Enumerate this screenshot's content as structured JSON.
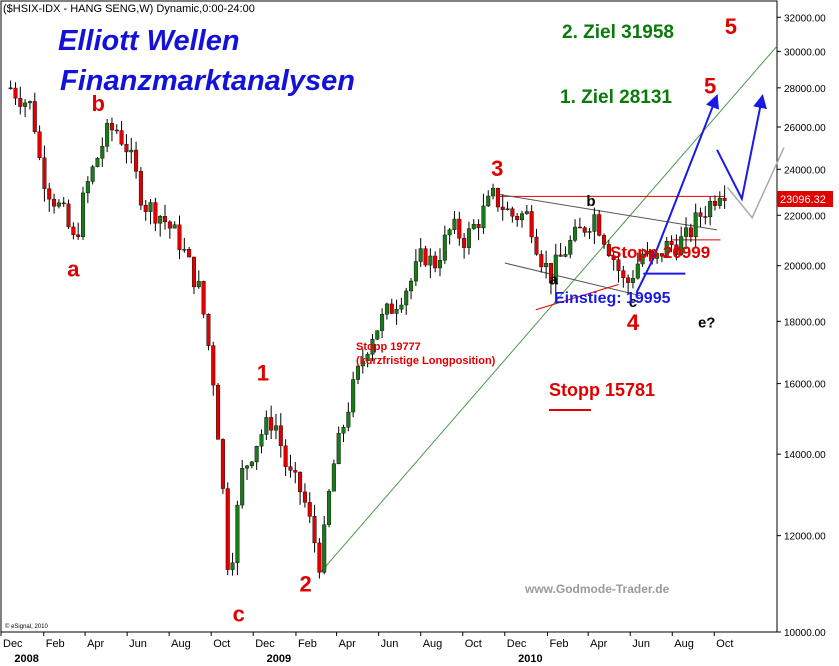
{
  "header": {
    "text": "($HSIX-IDX - HANG SENG,W) Dynamic,0:00-24:00"
  },
  "title": {
    "line1": "Elliott Wellen",
    "line2": "Finanzmarktanalysen"
  },
  "watermark": "www.Godmode-Trader.de",
  "copyright": "© eSignal, 2010",
  "colors": {
    "red": "#e00000",
    "blue": "#1a1ae6",
    "green": "#0a7a0a",
    "trend": "#4a9a4a",
    "candle": "#1a7a1a"
  },
  "chart_data": {
    "type": "candlestick",
    "title": "($HSIX-IDX - HANG SENG,W) Dynamic,0:00-24:00",
    "y_axis": {
      "side": "right",
      "scale": "log",
      "range": [
        10000,
        33000
      ],
      "ticks": [
        "10000.00",
        "12000.00",
        "14000.00",
        "16000.00",
        "18000.00",
        "20000.00",
        "22000.00",
        "24000.00",
        "26000.00",
        "28000.00",
        "30000.00",
        "32000.00"
      ]
    },
    "x_axis": {
      "range": [
        "2007-12-01",
        "2010-12-31"
      ],
      "months": [
        {
          "label": "Dec",
          "date": "2007-12-01"
        },
        {
          "label": "Feb",
          "date": "2008-02-01"
        },
        {
          "label": "Apr",
          "date": "2008-04-01"
        },
        {
          "label": "Jun",
          "date": "2008-06-01"
        },
        {
          "label": "Aug",
          "date": "2008-08-01"
        },
        {
          "label": "Oct",
          "date": "2008-10-01"
        },
        {
          "label": "Dec",
          "date": "2008-12-01"
        },
        {
          "label": "Feb",
          "date": "2009-02-01"
        },
        {
          "label": "Apr",
          "date": "2009-04-01"
        },
        {
          "label": "Jun",
          "date": "2009-06-01"
        },
        {
          "label": "Aug",
          "date": "2009-08-01"
        },
        {
          "label": "Oct",
          "date": "2009-10-01"
        },
        {
          "label": "Dec",
          "date": "2009-12-01"
        },
        {
          "label": "Feb",
          "date": "2010-02-01"
        },
        {
          "label": "Apr",
          "date": "2010-04-01"
        },
        {
          "label": "Jun",
          "date": "2010-06-01"
        },
        {
          "label": "Aug",
          "date": "2010-08-01"
        },
        {
          "label": "Oct",
          "date": "2010-10-01"
        }
      ],
      "years": [
        {
          "label": "2008",
          "date": "2008-01-01"
        },
        {
          "label": "2009",
          "date": "2009-01-01"
        },
        {
          "label": "2010",
          "date": "2010-01-01"
        }
      ]
    },
    "price_path": [
      [
        "2007-12-15",
        28000
      ],
      [
        "2008-01-15",
        27000
      ],
      [
        "2008-01-28",
        24000
      ],
      [
        "2008-02-10",
        23000
      ],
      [
        "2008-03-01",
        22000
      ],
      [
        "2008-03-17",
        20800
      ],
      [
        "2008-04-01",
        23000
      ],
      [
        "2008-05-01",
        25600
      ],
      [
        "2008-05-15",
        26000
      ],
      [
        "2008-06-01",
        25000
      ],
      [
        "2008-06-25",
        22500
      ],
      [
        "2008-07-20",
        22000
      ],
      [
        "2008-08-15",
        21000
      ],
      [
        "2008-09-15",
        19000
      ],
      [
        "2008-10-05",
        16000
      ],
      [
        "2008-10-27",
        11000
      ],
      [
        "2008-11-15",
        13500
      ],
      [
        "2008-12-10",
        14500
      ],
      [
        "2008-12-31",
        15000
      ],
      [
        "2009-01-20",
        13500
      ],
      [
        "2009-02-10",
        13000
      ],
      [
        "2009-03-09",
        11300
      ],
      [
        "2009-03-25",
        13500
      ],
      [
        "2009-04-20",
        15500
      ],
      [
        "2009-05-20",
        17500
      ],
      [
        "2009-06-20",
        18500
      ],
      [
        "2009-07-20",
        19500
      ],
      [
        "2009-08-05",
        20500
      ],
      [
        "2009-08-20",
        20000
      ],
      [
        "2009-09-15",
        21500
      ],
      [
        "2009-10-05",
        21000
      ],
      [
        "2009-11-15",
        22800
      ],
      [
        "2009-12-10",
        22000
      ],
      [
        "2010-01-05",
        22000
      ],
      [
        "2010-01-20",
        20500
      ],
      [
        "2010-02-05",
        19600
      ],
      [
        "2010-03-01",
        20700
      ],
      [
        "2010-04-10",
        22000
      ],
      [
        "2010-05-05",
        20500
      ],
      [
        "2010-05-25",
        19200
      ],
      [
        "2010-06-10",
        20000
      ],
      [
        "2010-06-20",
        20500
      ],
      [
        "2010-07-05",
        20000
      ],
      [
        "2010-07-20",
        20700
      ],
      [
        "2010-08-20",
        21000
      ],
      [
        "2010-09-10",
        22000
      ],
      [
        "2010-09-25",
        22500
      ],
      [
        "2010-10-10",
        23200
      ],
      [
        "2010-10-20",
        23096
      ]
    ],
    "last_price": "23096.32",
    "wave_labels": [
      {
        "text": "a",
        "color": "red",
        "date": "2008-03-15",
        "price": 19600
      },
      {
        "text": "b",
        "color": "red",
        "date": "2008-04-20",
        "price": 26800
      },
      {
        "text": "1",
        "color": "red",
        "date": "2008-12-15",
        "price": 16100
      },
      {
        "text": "c",
        "color": "red",
        "date": "2008-11-10",
        "price": 10200
      },
      {
        "text": "2",
        "color": "red",
        "date": "2009-02-15",
        "price": 10800
      },
      {
        "text": "3",
        "color": "red",
        "date": "2009-11-20",
        "price": 23700
      },
      {
        "text": "a",
        "color": "black",
        "date": "2010-02-10",
        "price": 19300
      },
      {
        "text": "b",
        "color": "black",
        "date": "2010-04-05",
        "price": 22400
      },
      {
        "text": "c",
        "color": "black",
        "date": "2010-06-05",
        "price": 18500
      },
      {
        "text": "4",
        "color": "red",
        "date": "2010-06-05",
        "price": 17700
      },
      {
        "text": "e?",
        "color": "black",
        "date": "2010-09-20",
        "price": 17800
      },
      {
        "text": "5",
        "color": "red",
        "date": "2010-09-25",
        "price": 27700
      },
      {
        "text": "5",
        "color": "red",
        "date": "2010-10-25",
        "price": 31000
      }
    ],
    "annotations": {
      "ziel1": "1. Ziel 28131",
      "ziel2": "2. Ziel 31958",
      "stopp_20999": "Stopp 20999",
      "einstieg": "Einstieg: 19995",
      "stopp_19777": "Stopp 19777",
      "kurzfristig": "(kurzfristige Longposition)",
      "stopp_15781": "Stopp 15781"
    }
  }
}
